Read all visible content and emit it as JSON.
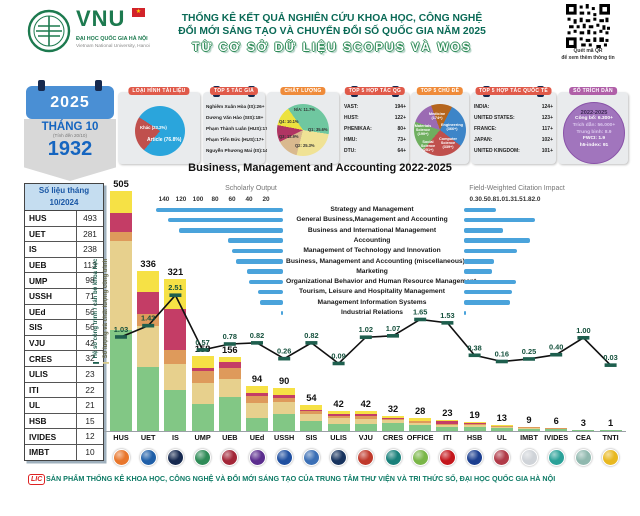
{
  "header": {
    "logo_acronym": "VNU",
    "logo_org_vi": "ĐẠI HỌC QUỐC GIA HÀ NỘI",
    "logo_org_en": "Vietnam National University, Hanoi",
    "title_line1": "THỐNG KÊ KẾT QUẢ NGHIÊN CỨU KHOA HỌC, CÔNG NGHỆ",
    "title_line2": "ĐỔI MỚI SÁNG TẠO VÀ CHUYỂN ĐỔI SỐ QUỐC GIA NĂM 2025",
    "title_line3": "TỪ CƠ SỞ DỮ LIỆU SCOPUS VÀ WOS",
    "qr_caption1": "Quét mã QR",
    "qr_caption2": "để xem thêm thông tin"
  },
  "calendar": {
    "year": "2025",
    "month": "THÁNG 10",
    "note": "(Tính đến 20/10)",
    "count": "1932"
  },
  "monthly_table": {
    "header1": "Số liệu tháng",
    "header2": "10/2024",
    "rows": [
      [
        "HUS",
        "493"
      ],
      [
        "UET",
        "281"
      ],
      [
        "IS",
        "238"
      ],
      [
        "UEB",
        "113"
      ],
      [
        "UMP",
        "98"
      ],
      [
        "USSH",
        "71"
      ],
      [
        "UEd",
        "56"
      ],
      [
        "SIS",
        "56"
      ],
      [
        "VJU",
        "42"
      ],
      [
        "CRES",
        "32"
      ],
      [
        "ULIS",
        "23"
      ],
      [
        "ITI",
        "22"
      ],
      [
        "UL",
        "21"
      ],
      [
        "HSB",
        "15"
      ],
      [
        "IVIDES",
        "12"
      ],
      [
        "IMBT",
        "10"
      ]
    ]
  },
  "stat_boxes": {
    "doc_type": {
      "title": "LOẠI HÌNH TÀI LIỆU",
      "header_color": "#e05a4a",
      "slices": [
        {
          "label": "Khác (23.2%)",
          "value": 23.2,
          "color": "#c0504d"
        },
        {
          "label": "Article (76.8%)",
          "value": 76.8,
          "color": "#2aa5dc"
        }
      ]
    },
    "top_authors": {
      "title": "TOP 5 TÁC GIẢ",
      "header_color": "#e05a4a",
      "items": [
        [
          "Nghiêm Xuân Hòa (IS):",
          "26+"
        ],
        [
          "Dương Văn Hào (SIS):",
          "18+"
        ],
        [
          "Phạm Thành Luân (HUS):",
          "17+"
        ],
        [
          "Phạm Tiến Đức (HUS):",
          "17+"
        ],
        [
          "Nguyễn Phương Mai (IS):",
          "14+"
        ]
      ]
    },
    "quality": {
      "title": "CHẤT LƯỢNG",
      "header_color": "#ef8b3a",
      "slices": [
        {
          "label": "Q1: 35.6%",
          "value": 35.6,
          "color": "#6fc7a0"
        },
        {
          "label": "Q2: 25.3%",
          "value": 25.3,
          "color": "#f0e295"
        },
        {
          "label": "Q3: 12.9%",
          "value": 12.9,
          "color": "#d9b98e"
        },
        {
          "label": "Q4: 10.1%",
          "value": 10.1,
          "color": "#b03563"
        },
        {
          "label": "N/A: 11.7%",
          "value": 11.7,
          "color": "#ece23f"
        }
      ]
    },
    "domestic_collab": {
      "title": "TOP 5 HỢP TÁC QG",
      "header_color": "#e05a4a",
      "items": [
        [
          "VAST:",
          "194+"
        ],
        [
          "HUST:",
          "122+"
        ],
        [
          "PHENIKAA:",
          "80+"
        ],
        [
          "HMU:",
          "73+"
        ],
        [
          "DTU:",
          "64+"
        ]
      ]
    },
    "top_subjects": {
      "title": "TOP 5 CHỦ ĐỀ",
      "header_color": "#ef8b3a",
      "slices": [
        {
          "label": "Medicine (174+)",
          "value": 174,
          "color": "#b5651d"
        },
        {
          "label": "Engineering (366+)",
          "value": 366,
          "color": "#3d85c8"
        },
        {
          "label": "Computer Science (339+)",
          "value": 339,
          "color": "#c0504d"
        },
        {
          "label": "Social Science (251+)",
          "value": 251,
          "color": "#6faf5f"
        },
        {
          "label": "Materials Science (190+)",
          "value": 190,
          "color": "#9b6bb3"
        }
      ]
    },
    "intl_collab": {
      "title": "TOP 5 HỢP TÁC QUỐC TẾ",
      "header_color": "#e05a4a",
      "items": [
        [
          "INDIA:",
          "124+"
        ],
        [
          "UNITED STATES:",
          "123+"
        ],
        [
          "FRANCE:",
          "117+"
        ],
        [
          "JAPAN:",
          "102+"
        ],
        [
          "UNITED KINGDOM:",
          "101+"
        ]
      ]
    },
    "citations": {
      "title": "SỐ TRÍCH DẪN",
      "header_color": "#b05fa8",
      "period": "2022-2025",
      "lines": [
        "Công bố: 6.300+",
        "Trích dẫn: 56.000+",
        "Trung bình: 8.9",
        "FWCI: 1.9",
        "h5-index: 91"
      ]
    }
  },
  "chart_data": [
    {
      "type": "bar",
      "name": "subject-butterfly",
      "title": "Business, Management and Accounting 2022-2025",
      "left_axis_label": "Scholarly Output",
      "left_ticks": [
        140,
        120,
        100,
        80,
        60,
        40,
        20
      ],
      "right_axis_label": "Field-Weighted Citation Impact",
      "right_ticks": [
        "0.3",
        "0.5",
        "0.8",
        "1.0",
        "1.3",
        "1.5",
        "1.8",
        "2.0"
      ],
      "categories": [
        "Strategy and Management",
        "General Business,Management and Accounting",
        "Business and International Management",
        "Accounting",
        "Management of Technology and Innovation",
        "Business, Management and Accounting (miscellaneous)",
        "Marketing",
        "Organizational Behavior and Human Resource Management",
        "Tourism, Leisure and Hospitality Management",
        "Management Information Systems",
        "Industrial Relations"
      ],
      "series": [
        {
          "name": "Scholarly Output",
          "values": [
            150,
            135,
            122,
            65,
            60,
            55,
            42,
            40,
            30,
            27,
            2
          ]
        },
        {
          "name": "Field-Weighted Citation Impact",
          "values": [
            0.9,
            2.0,
            1.1,
            1.85,
            1.5,
            0.85,
            0.8,
            1.45,
            1.35,
            1.3,
            0.05
          ]
        }
      ],
      "bar_color": "#4aa3db",
      "legend_position": "none",
      "grid": false
    },
    {
      "type": "bar+line",
      "name": "unit-scholarly-output",
      "categories": [
        "HUS",
        "UET",
        "IS",
        "UMP",
        "UEB",
        "UEd",
        "USSH",
        "SIS",
        "ULIS",
        "VJU",
        "CRES",
        "OFFICE",
        "ITI",
        "HSB",
        "UL",
        "IMBT",
        "IVIDES",
        "CEA",
        "TNTI"
      ],
      "bar_values": [
        505,
        336,
        321,
        158,
        156,
        94,
        90,
        54,
        42,
        42,
        32,
        28,
        23,
        19,
        13,
        9,
        6,
        3,
        1
      ],
      "line_values": [
        1.03,
        1.43,
        2.51,
        0.57,
        0.78,
        0.82,
        0.26,
        0.82,
        0.09,
        1.02,
        1.07,
        1.65,
        1.53,
        0.38,
        0.16,
        0.25,
        0.4,
        1.0,
        0.03
      ],
      "line_labels": [
        "1.03",
        "1.43",
        "2.51",
        "0.57",
        "0.78",
        "0.82",
        "0.26",
        "0.82",
        "0.09",
        "1.02",
        "1.07",
        "1.65",
        "1.53",
        "0.38",
        "0.16",
        "0.25",
        "0.40",
        "1.00",
        "0.03"
      ],
      "legend_line": "Hệ số công trình / cán bộ khoa học",
      "legend_bar": "Số lượng và chất lượng công trình",
      "stack_colors": [
        "#82c785",
        "#e7d08d",
        "#de9a5b",
        "#c43d66",
        "#f6e145"
      ],
      "stack_fractions": [
        [
          0.42,
          0.37,
          0.04,
          0.08,
          0.09
        ],
        [
          0.4,
          0.26,
          0.07,
          0.14,
          0.13
        ],
        [
          0.27,
          0.17,
          0.09,
          0.27,
          0.2
        ],
        [
          0.36,
          0.28,
          0.16,
          0.04,
          0.16
        ],
        [
          0.46,
          0.24,
          0.15,
          0.08,
          0.07
        ],
        [
          0.3,
          0.33,
          0.16,
          0.07,
          0.14
        ],
        [
          0.4,
          0.28,
          0.09,
          0.08,
          0.15
        ],
        [
          0.38,
          0.3,
          0.1,
          0.05,
          0.17
        ],
        [
          0.35,
          0.28,
          0.12,
          0.1,
          0.15
        ],
        [
          0.35,
          0.25,
          0.15,
          0.1,
          0.15
        ],
        [
          0.55,
          0.18,
          0.05,
          0.05,
          0.17
        ],
        [
          0.45,
          0.18,
          0.1,
          0.05,
          0.22
        ],
        [
          0.38,
          0.15,
          0.1,
          0.27,
          0.1
        ],
        [
          0.45,
          0.2,
          0.12,
          0.08,
          0.15
        ],
        [
          0.4,
          0.3,
          0.1,
          0.05,
          0.15
        ],
        [
          0.4,
          0.3,
          0.15,
          0.05,
          0.1
        ],
        [
          0.6,
          0.25,
          0.05,
          0.02,
          0.08
        ],
        [
          0.55,
          0.3,
          0.05,
          0.0,
          0.1
        ],
        [
          0.6,
          0.4,
          0.0,
          0.0,
          0.0
        ]
      ],
      "line_color": "#111111",
      "marker_color": "#1e5f4e",
      "logo_colors": [
        "#e8762c",
        "#1f5fa8",
        "#16294f",
        "#2e8b57",
        "#a32638",
        "#5b2d8e",
        "#1f4fa0",
        "#3b6fb5",
        "#17335e",
        "#c0392b",
        "#18807a",
        "#7ab648",
        "#c4161c",
        "#1b3e8f",
        "#b03a48",
        "#cfd3d8",
        "#2aa198",
        "#8fb8ae",
        "#e8b820"
      ]
    }
  ],
  "footer": {
    "lic": "LIC",
    "text": "SẢN PHẨM  THỐNG KÊ KHOA HỌC, CÔNG NGHỆ VÀ ĐỔI MỚI SÁNG TẠO CỦA TRUNG TÂM THƯ VIỆN VÀ TRI THỨC SỐ, ĐẠI HỌC QUỐC GIA HÀ NỘI"
  }
}
